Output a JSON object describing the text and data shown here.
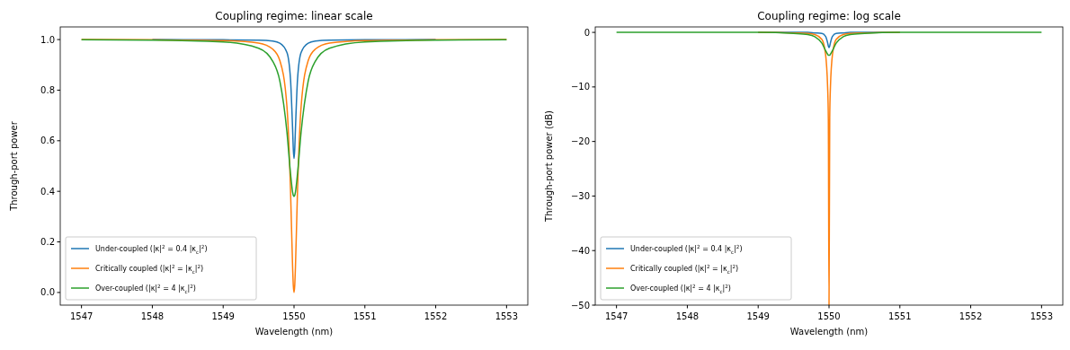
{
  "chart_data": [
    {
      "type": "line",
      "title": "Coupling regime: linear scale",
      "xlabel": "Wavelength (nm)",
      "ylabel": "Through-port power",
      "x": [
        1547,
        1548,
        1549,
        1549.5,
        1549.7,
        1549.8,
        1549.9,
        1549.95,
        1549.98,
        1549.99,
        1550,
        1550.01,
        1550.02,
        1550.05,
        1550.1,
        1550.2,
        1550.3,
        1550.5,
        1551,
        1552,
        1553
      ],
      "xlim": [
        1546.7,
        1553.3
      ],
      "xticks": [
        1547,
        1548,
        1549,
        1550,
        1551,
        1552,
        1553
      ],
      "ylim": [
        -0.05,
        1.05
      ],
      "yticks": [
        {
          "value": 0,
          "label": "0.0"
        },
        {
          "value": 0.2,
          "label": "0.2"
        },
        {
          "value": 0.4,
          "label": "0.4"
        },
        {
          "value": 0.6,
          "label": "0.6"
        },
        {
          "value": 0.8,
          "label": "0.8"
        },
        {
          "value": 1,
          "label": "1.0"
        }
      ],
      "legend": "bottom left",
      "grid": false,
      "series": [
        {
          "name": "Under-coupled (|κ|$^{2}$ = 0.4 |κ$_{c}$|$^{2}$)",
          "color": "#1f77b4",
          "values": [
            null,
            1,
            0.999,
            0.998,
            0.994,
            0.986,
            0.949,
            0.845,
            0.646,
            0.566,
            0.53,
            0.566,
            0.646,
            0.845,
            0.949,
            0.986,
            0.994,
            0.998,
            0.999,
            1,
            null
          ]
        },
        {
          "name": "Critically coupled (|κ|$^{2}$ = |κ$_{c}$|$^{2}$)",
          "color": "#ff7f0e",
          "values": [
            1,
            0.999,
            0.996,
            0.986,
            0.962,
            0.917,
            0.735,
            0.41,
            0.1,
            0.027,
            0,
            0.027,
            0.1,
            0.41,
            0.735,
            0.917,
            0.962,
            0.986,
            0.996,
            0.999,
            1
          ]
        },
        {
          "name": "Over-coupled (|κ|$^{2}$ = 4 |κ$_{c}$|$^{2}$)",
          "color": "#2ca02c",
          "values": [
            0.999,
            0.998,
            0.991,
            0.966,
            0.914,
            0.836,
            0.634,
            0.472,
            0.397,
            0.384,
            0.38,
            0.384,
            0.397,
            0.472,
            0.634,
            0.836,
            0.914,
            0.966,
            0.991,
            0.998,
            0.999
          ]
        }
      ]
    },
    {
      "type": "line",
      "title": "Coupling regime: log scale",
      "xlabel": "Wavelength (nm)",
      "ylabel": "Through-port power (dB)",
      "x": [
        1547,
        1548,
        1549,
        1549.5,
        1549.7,
        1549.8,
        1549.9,
        1549.95,
        1549.98,
        1549.99,
        1550,
        1550.01,
        1550.02,
        1550.05,
        1550.1,
        1550.2,
        1550.3,
        1550.5,
        1551,
        1552,
        1553
      ],
      "xlim": [
        1546.7,
        1553.3
      ],
      "xticks": [
        1547,
        1548,
        1549,
        1550,
        1551,
        1552,
        1553
      ],
      "ylim": [
        -50,
        1
      ],
      "yticks": [
        {
          "value": -50,
          "label": "−50"
        },
        {
          "value": -40,
          "label": "−40"
        },
        {
          "value": -30,
          "label": "−30"
        },
        {
          "value": -20,
          "label": "−20"
        },
        {
          "value": -10,
          "label": "−10"
        },
        0
      ],
      "legend": "bottom left",
      "grid": false,
      "series": [
        {
          "name": "Under-coupled (|κ|$^{2}$ = 0.4 |κ$_{c}$|$^{2}$)",
          "color": "#1f77b4",
          "values": [
            null,
            null,
            0,
            0,
            0,
            -0.1,
            -0.2,
            -0.7,
            -1.9,
            -2.5,
            -2.8,
            -2.5,
            -1.9,
            -0.7,
            -0.2,
            -0.1,
            0,
            0,
            0,
            null,
            null
          ]
        },
        {
          "name": "Critically coupled (|κ|$^{2}$ = |κ$_{c}$|$^{2}$)",
          "color": "#ff7f0e",
          "values": [
            null,
            null,
            0,
            -0.1,
            -0.2,
            -0.4,
            -1.3,
            -3.9,
            -10,
            -15.7,
            -50,
            -15.7,
            -10,
            -3.9,
            -1.3,
            -0.4,
            -0.2,
            -0.1,
            0,
            null,
            null
          ]
        },
        {
          "name": "Over-coupled (|κ|$^{2}$ = 4 |κ$_{c}$|$^{2}$)",
          "color": "#2ca02c",
          "values": [
            0,
            0,
            0,
            -0.2,
            -0.4,
            -0.8,
            -2,
            -3.3,
            -4,
            -4.2,
            -4.2,
            -4.2,
            -4,
            -3.3,
            -2,
            -0.8,
            -0.4,
            -0.2,
            0,
            0,
            0
          ]
        }
      ]
    }
  ]
}
